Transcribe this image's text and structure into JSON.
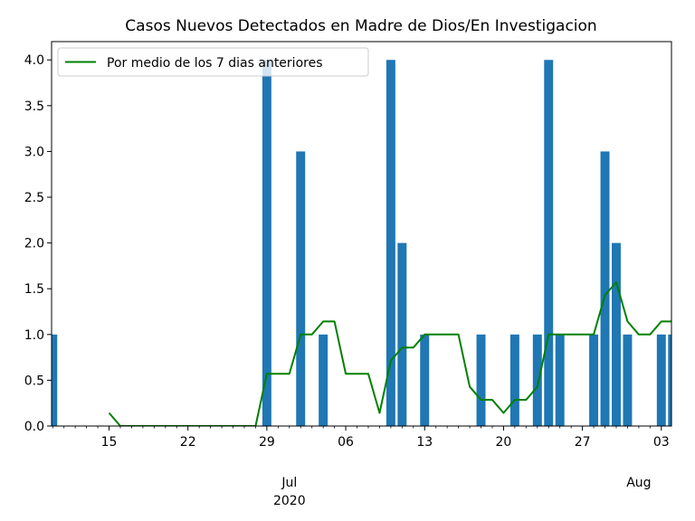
{
  "chart_data": {
    "type": "bar",
    "title": "Casos Nuevos Detectados en Madre de Dios/En Investigacion",
    "xlabel": "",
    "ylabel": "",
    "x_start": "2020-06-10",
    "x_end": "2020-08-04",
    "dates": [
      "2020-06-10",
      "2020-06-11",
      "2020-06-12",
      "2020-06-13",
      "2020-06-14",
      "2020-06-15",
      "2020-06-16",
      "2020-06-17",
      "2020-06-18",
      "2020-06-19",
      "2020-06-20",
      "2020-06-21",
      "2020-06-22",
      "2020-06-23",
      "2020-06-24",
      "2020-06-25",
      "2020-06-26",
      "2020-06-27",
      "2020-06-28",
      "2020-06-29",
      "2020-06-30",
      "2020-07-01",
      "2020-07-02",
      "2020-07-03",
      "2020-07-04",
      "2020-07-05",
      "2020-07-06",
      "2020-07-07",
      "2020-07-08",
      "2020-07-09",
      "2020-07-10",
      "2020-07-11",
      "2020-07-12",
      "2020-07-13",
      "2020-07-14",
      "2020-07-15",
      "2020-07-16",
      "2020-07-17",
      "2020-07-18",
      "2020-07-19",
      "2020-07-20",
      "2020-07-21",
      "2020-07-22",
      "2020-07-23",
      "2020-07-24",
      "2020-07-25",
      "2020-07-26",
      "2020-07-27",
      "2020-07-28",
      "2020-07-29",
      "2020-07-30",
      "2020-07-31",
      "2020-08-01",
      "2020-08-02",
      "2020-08-03",
      "2020-08-04"
    ],
    "series": [
      {
        "name": "",
        "kind": "bar",
        "color": "#1f77b4",
        "values": [
          1,
          0,
          0,
          0,
          0,
          0,
          0,
          0,
          0,
          0,
          0,
          0,
          0,
          0,
          0,
          0,
          0,
          0,
          0,
          4,
          0,
          0,
          3,
          0,
          1,
          0,
          0,
          0,
          0,
          0,
          4,
          2,
          0,
          1,
          0,
          0,
          0,
          0,
          1,
          0,
          0,
          1,
          0,
          1,
          4,
          1,
          0,
          0,
          1,
          3,
          2,
          1,
          0,
          0,
          1,
          1
        ]
      },
      {
        "name": "Por medio de los 7 dias anteriores",
        "kind": "line",
        "color": "#008000",
        "values": [
          null,
          null,
          null,
          null,
          null,
          0.143,
          0,
          0,
          0,
          0,
          0,
          0,
          0,
          0,
          0,
          0,
          0,
          0,
          0,
          0.571,
          0.571,
          0.571,
          1,
          1,
          1.143,
          1.143,
          0.571,
          0.571,
          0.571,
          0.143,
          0.714,
          0.857,
          0.857,
          1,
          1,
          1,
          1,
          0.429,
          0.286,
          0.286,
          0.143,
          0.286,
          0.286,
          0.429,
          1,
          1,
          1,
          1,
          1,
          1.429,
          1.571,
          1.143,
          1,
          1,
          1.143,
          1.143
        ]
      }
    ],
    "ylim": [
      0,
      4.2
    ],
    "yticks": [
      "0.0",
      "0.5",
      "1.0",
      "1.5",
      "2.0",
      "2.5",
      "3.0",
      "3.5",
      "4.0"
    ],
    "xticks": [
      {
        "date": "2020-06-15",
        "label": "15"
      },
      {
        "date": "2020-06-22",
        "label": "22"
      },
      {
        "date": "2020-06-29",
        "label": "29"
      },
      {
        "date": "2020-07-06",
        "label": "06"
      },
      {
        "date": "2020-07-13",
        "label": "13"
      },
      {
        "date": "2020-07-20",
        "label": "20"
      },
      {
        "date": "2020-07-27",
        "label": "27"
      },
      {
        "date": "2020-08-03",
        "label": "03"
      }
    ],
    "month_labels": [
      {
        "date": "2020-07-01",
        "label": "Jul"
      },
      {
        "date": "2020-08-01",
        "label": "Aug"
      }
    ],
    "year_label": {
      "date": "2020-07-01",
      "label": "2020"
    },
    "legend": {
      "position": "top-left",
      "entries": [
        "Por medio de los 7 dias anteriores"
      ]
    },
    "grid": false
  }
}
